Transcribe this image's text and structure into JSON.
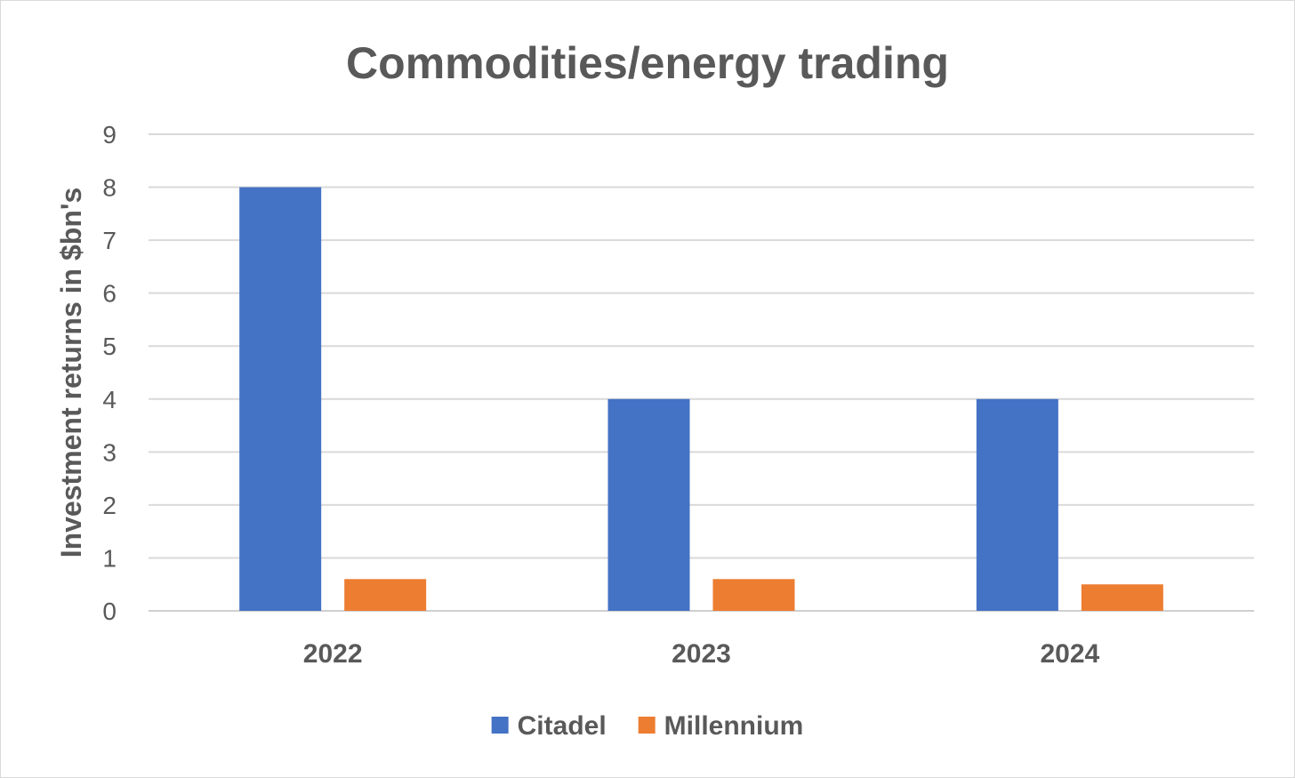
{
  "chart_data": {
    "type": "bar",
    "title": "Commodities/energy trading",
    "xlabel": "",
    "ylabel": "Investment returns in $bn's",
    "categories": [
      "2022",
      "2023",
      "2024"
    ],
    "series": [
      {
        "name": "Citadel",
        "values": [
          8,
          4,
          4
        ],
        "color": "#4472C4"
      },
      {
        "name": "Millennium",
        "values": [
          0.6,
          0.6,
          0.5
        ],
        "color": "#ED7D31"
      }
    ],
    "ylim": [
      0,
      9
    ],
    "yticks": [
      "0",
      "1",
      "2",
      "3",
      "4",
      "5",
      "6",
      "7",
      "8",
      "9"
    ],
    "grid": true,
    "legend_position": "bottom"
  }
}
